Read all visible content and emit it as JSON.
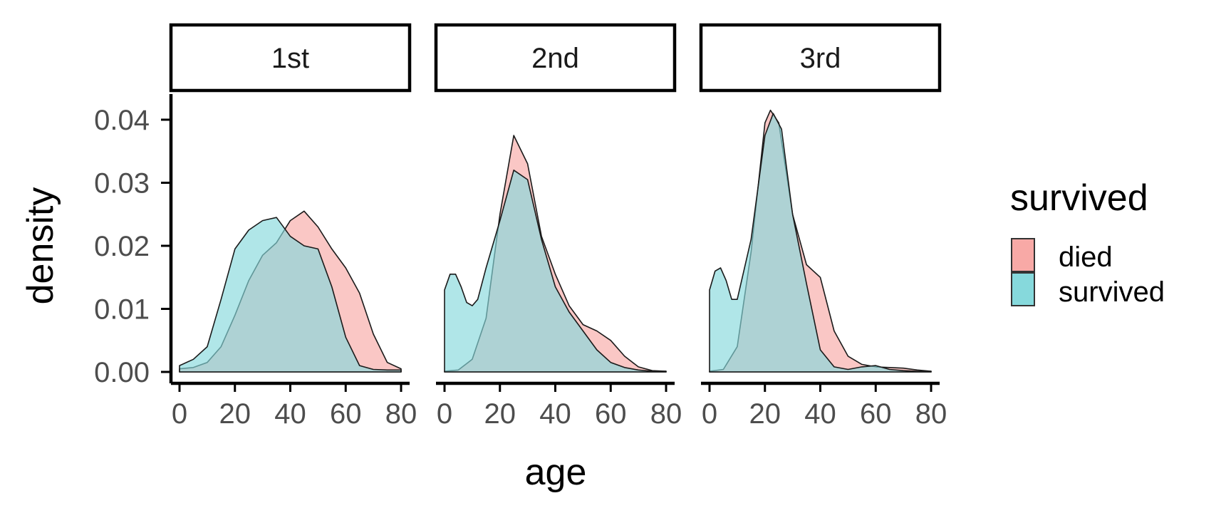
{
  "chart_data": {
    "type": "area",
    "chart_kind": "faceted density plot",
    "xlabel": "age",
    "ylabel": "density",
    "xlim": [
      0,
      80
    ],
    "ylim": [
      0,
      0.04
    ],
    "x_ticks": [
      "0",
      "20",
      "40",
      "60",
      "80"
    ],
    "y_ticks": [
      "0.00",
      "0.01",
      "0.02",
      "0.03",
      "0.04"
    ],
    "grid": false,
    "legend": {
      "title": "survived",
      "position": "right",
      "items": [
        {
          "label": "died",
          "color": "#f8a9a6"
        },
        {
          "label": "survived",
          "color": "#86d9dc"
        }
      ]
    },
    "overlap_color": "#86b0b0",
    "facets": [
      {
        "label": "1st",
        "series": [
          {
            "name": "died",
            "color": "#f8a9a6",
            "x": [
              0,
              5,
              10,
              15,
              20,
              25,
              30,
              35,
              40,
              45,
              50,
              55,
              60,
              65,
              70,
              75,
              80
            ],
            "y": [
              0.0005,
              0.0007,
              0.0015,
              0.004,
              0.009,
              0.0145,
              0.0185,
              0.0205,
              0.024,
              0.0255,
              0.023,
              0.0195,
              0.0165,
              0.0125,
              0.006,
              0.0015,
              0.0005
            ]
          },
          {
            "name": "survived",
            "color": "#86d9dc",
            "x": [
              0,
              5,
              10,
              15,
              20,
              25,
              30,
              35,
              40,
              45,
              50,
              55,
              60,
              65,
              70,
              75,
              80
            ],
            "y": [
              0.001,
              0.002,
              0.004,
              0.0115,
              0.0195,
              0.0225,
              0.024,
              0.0245,
              0.0215,
              0.02,
              0.0195,
              0.0135,
              0.0055,
              0.001,
              0.0004,
              0.0003,
              0.0003
            ]
          }
        ]
      },
      {
        "label": "2nd",
        "series": [
          {
            "name": "died",
            "color": "#f8a9a6",
            "x": [
              0,
              5,
              10,
              15,
              20,
              25,
              30,
              35,
              40,
              45,
              50,
              55,
              60,
              65,
              70,
              75,
              80
            ],
            "y": [
              0.0001,
              0.0003,
              0.002,
              0.0085,
              0.025,
              0.0375,
              0.033,
              0.0215,
              0.0155,
              0.0105,
              0.0075,
              0.0065,
              0.005,
              0.0025,
              0.0008,
              0.0002,
              0.0001
            ]
          },
          {
            "name": "survived",
            "color": "#86d9dc",
            "x": [
              0,
              2,
              4,
              6,
              8,
              10,
              12,
              15,
              20,
              25,
              30,
              35,
              40,
              45,
              50,
              55,
              60,
              65,
              70,
              75,
              80
            ],
            "y": [
              0.013,
              0.0155,
              0.0155,
              0.0135,
              0.011,
              0.0105,
              0.0115,
              0.0165,
              0.024,
              0.032,
              0.0305,
              0.021,
              0.0135,
              0.0095,
              0.0065,
              0.0035,
              0.0015,
              0.0007,
              0.0003,
              0.0001,
              0.0001
            ]
          }
        ]
      },
      {
        "label": "3rd",
        "series": [
          {
            "name": "died",
            "color": "#f8a9a6",
            "x": [
              0,
              5,
              10,
              15,
              20,
              22,
              25,
              30,
              35,
              40,
              45,
              50,
              55,
              60,
              65,
              70,
              75,
              80
            ],
            "y": [
              0.0001,
              0.0004,
              0.004,
              0.019,
              0.0395,
              0.0415,
              0.0395,
              0.025,
              0.017,
              0.015,
              0.0065,
              0.0025,
              0.0012,
              0.0008,
              0.0007,
              0.0006,
              0.0003,
              0.0001
            ]
          },
          {
            "name": "survived",
            "color": "#86d9dc",
            "x": [
              0,
              2,
              4,
              6,
              8,
              10,
              15,
              20,
              23,
              26,
              30,
              35,
              40,
              45,
              50,
              55,
              60,
              65,
              70,
              75,
              80
            ],
            "y": [
              0.013,
              0.016,
              0.0165,
              0.0145,
              0.0115,
              0.0115,
              0.021,
              0.0375,
              0.041,
              0.0385,
              0.025,
              0.014,
              0.0035,
              0.0008,
              0.0004,
              0.0008,
              0.001,
              0.0004,
              0.0002,
              0.0001,
              0.0001
            ]
          }
        ]
      }
    ]
  }
}
